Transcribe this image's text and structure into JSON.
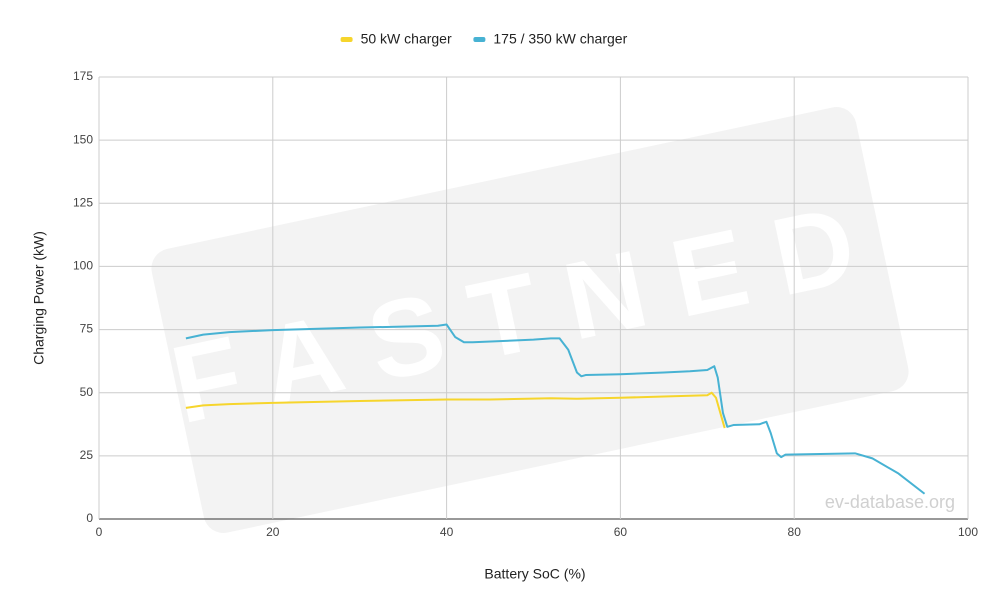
{
  "chart_data": {
    "type": "line",
    "xlabel": "Battery SoC (%)",
    "ylabel": "Charging Power (kW)",
    "xlim": [
      0,
      100
    ],
    "xticks": [
      0,
      20,
      40,
      60,
      80,
      100
    ],
    "ylim": [
      0,
      175
    ],
    "yticks": [
      0,
      25,
      50,
      75,
      100,
      125,
      150,
      175
    ],
    "grid": true,
    "legend": "top",
    "watermark_logo": "FASTNED",
    "watermark": "ev-database.org",
    "series": [
      {
        "name": "50 kW charger",
        "color": "#f6d52c",
        "x": [
          10,
          12,
          15,
          20,
          30,
          40,
          45,
          52,
          55,
          60,
          65,
          70,
          70.5,
          71,
          71.5,
          72
        ],
        "values": [
          44,
          45,
          45.5,
          46,
          46.7,
          47.3,
          47.3,
          47.8,
          47.6,
          48,
          48.5,
          49,
          50,
          48,
          42,
          36
        ]
      },
      {
        "name": "175 / 350 kW charger",
        "color": "#47b2d3",
        "x": [
          10,
          12,
          15,
          20,
          30,
          39,
          40,
          41,
          42,
          43,
          50,
          52,
          53,
          54,
          55,
          55.5,
          56,
          60,
          65,
          68,
          70,
          70.8,
          71.2,
          71.8,
          72.3,
          73,
          76,
          76.8,
          77.3,
          78,
          78.5,
          79,
          87,
          89,
          92,
          95
        ],
        "values": [
          71.5,
          73,
          74,
          74.8,
          75.8,
          76.5,
          77,
          72,
          70,
          70,
          71,
          71.5,
          71.5,
          67,
          58,
          56.5,
          57,
          57.3,
          58,
          58.5,
          59,
          60.5,
          56,
          42,
          36.5,
          37.2,
          37.5,
          38.5,
          34,
          26,
          24.5,
          25.5,
          26,
          24,
          18,
          10
        ]
      }
    ]
  }
}
